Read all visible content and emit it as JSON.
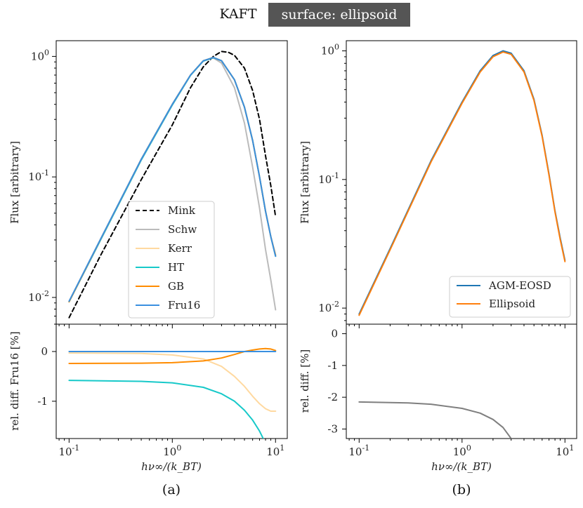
{
  "header": {
    "left": "KAFT",
    "badge": "surface: ellipsoid",
    "badge_color": "#555555"
  },
  "chart_data": [
    {
      "panel": "(a)",
      "type": "line",
      "xscale": "log",
      "xlim": [
        0.075,
        13
      ],
      "xticks": [
        {
          "v": 0.1,
          "label": "10^-1"
        },
        {
          "v": 1,
          "label": "10^0"
        },
        {
          "v": 10,
          "label": "10^1"
        }
      ],
      "xlabel": "hν∞/(k_BT)",
      "top": {
        "ylabel": "Flux [arbitrary]",
        "yscale": "log",
        "ylim": [
          0.006,
          1.35
        ],
        "yticks": [
          {
            "v": 1,
            "label": "10^0"
          },
          {
            "v": 0.1,
            "label": "10^-1"
          },
          {
            "v": 0.01,
            "label": "10^-2"
          }
        ],
        "legend_position": "center-right",
        "series": [
          {
            "name": "Mink",
            "color": "#000000",
            "dash": true,
            "points": [
              [
                0.1,
                0.0068
              ],
              [
                0.2,
                0.022
              ],
              [
                0.5,
                0.095
              ],
              [
                1,
                0.27
              ],
              [
                1.5,
                0.55
              ],
              [
                2,
                0.82
              ],
              [
                2.5,
                1.0
              ],
              [
                3,
                1.1
              ],
              [
                3.5,
                1.08
              ],
              [
                4,
                1.02
              ],
              [
                5,
                0.8
              ],
              [
                6,
                0.52
              ],
              [
                7,
                0.3
              ],
              [
                8,
                0.15
              ],
              [
                9,
                0.085
              ],
              [
                10,
                0.047
              ]
            ]
          },
          {
            "name": "Schw",
            "color": "#bbbbbb",
            "points": [
              [
                0.1,
                0.0093
              ],
              [
                0.2,
                0.03
              ],
              [
                0.5,
                0.14
              ],
              [
                1,
                0.4
              ],
              [
                1.5,
                0.7
              ],
              [
                2,
                0.92
              ],
              [
                2.5,
                0.97
              ],
              [
                3,
                0.88
              ],
              [
                4,
                0.55
              ],
              [
                5,
                0.28
              ],
              [
                6,
                0.12
              ],
              [
                7,
                0.055
              ],
              [
                8,
                0.025
              ],
              [
                9,
                0.014
              ],
              [
                10,
                0.0079
              ]
            ]
          },
          {
            "name": "Kerr",
            "color": "#ffd9a0",
            "points": [
              [
                0.1,
                0.0093
              ],
              [
                0.2,
                0.03
              ],
              [
                0.5,
                0.14
              ],
              [
                1,
                0.4
              ],
              [
                1.5,
                0.7
              ],
              [
                2,
                0.92
              ],
              [
                2.5,
                0.98
              ],
              [
                3,
                0.92
              ],
              [
                4,
                0.64
              ],
              [
                5,
                0.38
              ],
              [
                6,
                0.2
              ],
              [
                7,
                0.1
              ],
              [
                8,
                0.052
              ],
              [
                9,
                0.032
              ],
              [
                10,
                0.022
              ]
            ]
          },
          {
            "name": "HT",
            "color": "#17c9c9",
            "points": [
              [
                0.1,
                0.0092
              ],
              [
                0.2,
                0.0295
              ],
              [
                0.5,
                0.138
              ],
              [
                1,
                0.395
              ],
              [
                1.5,
                0.695
              ],
              [
                2,
                0.915
              ],
              [
                2.5,
                0.975
              ],
              [
                3,
                0.92
              ],
              [
                4,
                0.64
              ],
              [
                5,
                0.38
              ],
              [
                6,
                0.2
              ],
              [
                7,
                0.1
              ],
              [
                8,
                0.052
              ],
              [
                9,
                0.032
              ],
              [
                10,
                0.022
              ]
            ]
          },
          {
            "name": "GB",
            "color": "#ff8c00",
            "points": [
              [
                0.1,
                0.0092
              ],
              [
                0.2,
                0.0299
              ],
              [
                0.5,
                0.14
              ],
              [
                1,
                0.4
              ],
              [
                1.5,
                0.7
              ],
              [
                2,
                0.92
              ],
              [
                2.5,
                0.98
              ],
              [
                3,
                0.92
              ],
              [
                4,
                0.64
              ],
              [
                5,
                0.38
              ],
              [
                6,
                0.2
              ],
              [
                7,
                0.1
              ],
              [
                8,
                0.052
              ],
              [
                9,
                0.032
              ],
              [
                10,
                0.0225
              ]
            ]
          },
          {
            "name": "Fru16",
            "color": "#3a8fe0",
            "points": [
              [
                0.1,
                0.0093
              ],
              [
                0.2,
                0.03
              ],
              [
                0.5,
                0.14
              ],
              [
                1,
                0.4
              ],
              [
                1.5,
                0.7
              ],
              [
                2,
                0.92
              ],
              [
                2.5,
                0.98
              ],
              [
                3,
                0.92
              ],
              [
                4,
                0.64
              ],
              [
                5,
                0.38
              ],
              [
                6,
                0.2
              ],
              [
                7,
                0.1
              ],
              [
                8,
                0.052
              ],
              [
                9,
                0.032
              ],
              [
                10,
                0.022
              ]
            ]
          }
        ]
      },
      "bottom": {
        "ylabel": "rel. diff. Fru16 [%]",
        "ylim": [
          -1.75,
          0.55
        ],
        "yticks": [
          {
            "v": 0,
            "label": "0"
          },
          {
            "v": -1,
            "label": "-1"
          }
        ],
        "series": [
          {
            "name": "Kerr",
            "color": "#ffd9a0",
            "points": [
              [
                0.1,
                -0.03
              ],
              [
                0.5,
                -0.04
              ],
              [
                1,
                -0.07
              ],
              [
                2,
                -0.15
              ],
              [
                3,
                -0.3
              ],
              [
                4,
                -0.5
              ],
              [
                5,
                -0.7
              ],
              [
                6,
                -0.9
              ],
              [
                7,
                -1.05
              ],
              [
                8,
                -1.15
              ],
              [
                9,
                -1.2
              ],
              [
                10,
                -1.2
              ]
            ]
          },
          {
            "name": "HT",
            "color": "#17c9c9",
            "points": [
              [
                0.1,
                -0.58
              ],
              [
                0.5,
                -0.6
              ],
              [
                1,
                -0.63
              ],
              [
                2,
                -0.72
              ],
              [
                3,
                -0.85
              ],
              [
                4,
                -1.0
              ],
              [
                5,
                -1.18
              ],
              [
                6,
                -1.38
              ],
              [
                7,
                -1.6
              ],
              [
                7.6,
                -1.75
              ]
            ]
          },
          {
            "name": "GB",
            "color": "#ff8c00",
            "points": [
              [
                0.1,
                -0.24
              ],
              [
                0.5,
                -0.235
              ],
              [
                1,
                -0.225
              ],
              [
                2,
                -0.19
              ],
              [
                3,
                -0.13
              ],
              [
                4,
                -0.06
              ],
              [
                5,
                0.0
              ],
              [
                6,
                0.03
              ],
              [
                7,
                0.05
              ],
              [
                8,
                0.06
              ],
              [
                9,
                0.05
              ],
              [
                10,
                0.02
              ]
            ]
          },
          {
            "name": "Fru16",
            "color": "#3a8fe0",
            "points": [
              [
                0.1,
                0.0
              ],
              [
                10,
                0.0
              ]
            ]
          }
        ]
      }
    },
    {
      "panel": "(b)",
      "type": "line",
      "xscale": "log",
      "xlim": [
        0.075,
        13
      ],
      "xticks": [
        {
          "v": 0.1,
          "label": "10^-1"
        },
        {
          "v": 1,
          "label": "10^0"
        },
        {
          "v": 10,
          "label": "10^1"
        }
      ],
      "xlabel": "hν∞/(k_BT)",
      "top": {
        "ylabel": "Flux [arbitrary]",
        "yscale": "log",
        "ylim": [
          0.0075,
          1.2
        ],
        "yticks": [
          {
            "v": 1,
            "label": "10^0"
          },
          {
            "v": 0.1,
            "label": "10^-1"
          },
          {
            "v": 0.01,
            "label": "10^-2"
          }
        ],
        "legend_position": "lower-right",
        "series": [
          {
            "name": "AGM-EOSD",
            "color": "#1f77b4",
            "points": [
              [
                0.1,
                0.009
              ],
              [
                0.2,
                0.029
              ],
              [
                0.5,
                0.14
              ],
              [
                1,
                0.4
              ],
              [
                1.5,
                0.7
              ],
              [
                2,
                0.92
              ],
              [
                2.5,
                1.0
              ],
              [
                3,
                0.96
              ],
              [
                4,
                0.7
              ],
              [
                5,
                0.42
              ],
              [
                6,
                0.22
              ],
              [
                7,
                0.11
              ],
              [
                8,
                0.057
              ],
              [
                9,
                0.035
              ],
              [
                10,
                0.0235
              ]
            ]
          },
          {
            "name": "Ellipsoid",
            "color": "#ff7f0e",
            "points": [
              [
                0.1,
                0.0088
              ],
              [
                0.2,
                0.0284
              ],
              [
                0.5,
                0.137
              ],
              [
                1,
                0.392
              ],
              [
                1.5,
                0.685
              ],
              [
                2,
                0.9
              ],
              [
                2.5,
                0.98
              ],
              [
                3,
                0.94
              ],
              [
                4,
                0.686
              ],
              [
                5,
                0.412
              ],
              [
                6,
                0.216
              ],
              [
                7,
                0.108
              ],
              [
                8,
                0.056
              ],
              [
                9,
                0.034
              ],
              [
                10,
                0.023
              ]
            ]
          }
        ]
      },
      "bottom": {
        "ylabel": "rel. diff. [%]",
        "ylim": [
          -3.3,
          0.3
        ],
        "yticks": [
          {
            "v": 0,
            "label": "0"
          },
          {
            "v": -1,
            "label": "-1"
          },
          {
            "v": -2,
            "label": "-2"
          },
          {
            "v": -3,
            "label": "-3"
          }
        ],
        "series": [
          {
            "name": "",
            "color": "#7f7f7f",
            "points": [
              [
                0.1,
                -2.15
              ],
              [
                0.3,
                -2.18
              ],
              [
                0.5,
                -2.22
              ],
              [
                1,
                -2.35
              ],
              [
                1.5,
                -2.5
              ],
              [
                2,
                -2.7
              ],
              [
                2.5,
                -2.95
              ],
              [
                3,
                -3.3
              ]
            ]
          }
        ]
      }
    }
  ],
  "captions": {
    "a": "(a)",
    "b": "(b)"
  }
}
